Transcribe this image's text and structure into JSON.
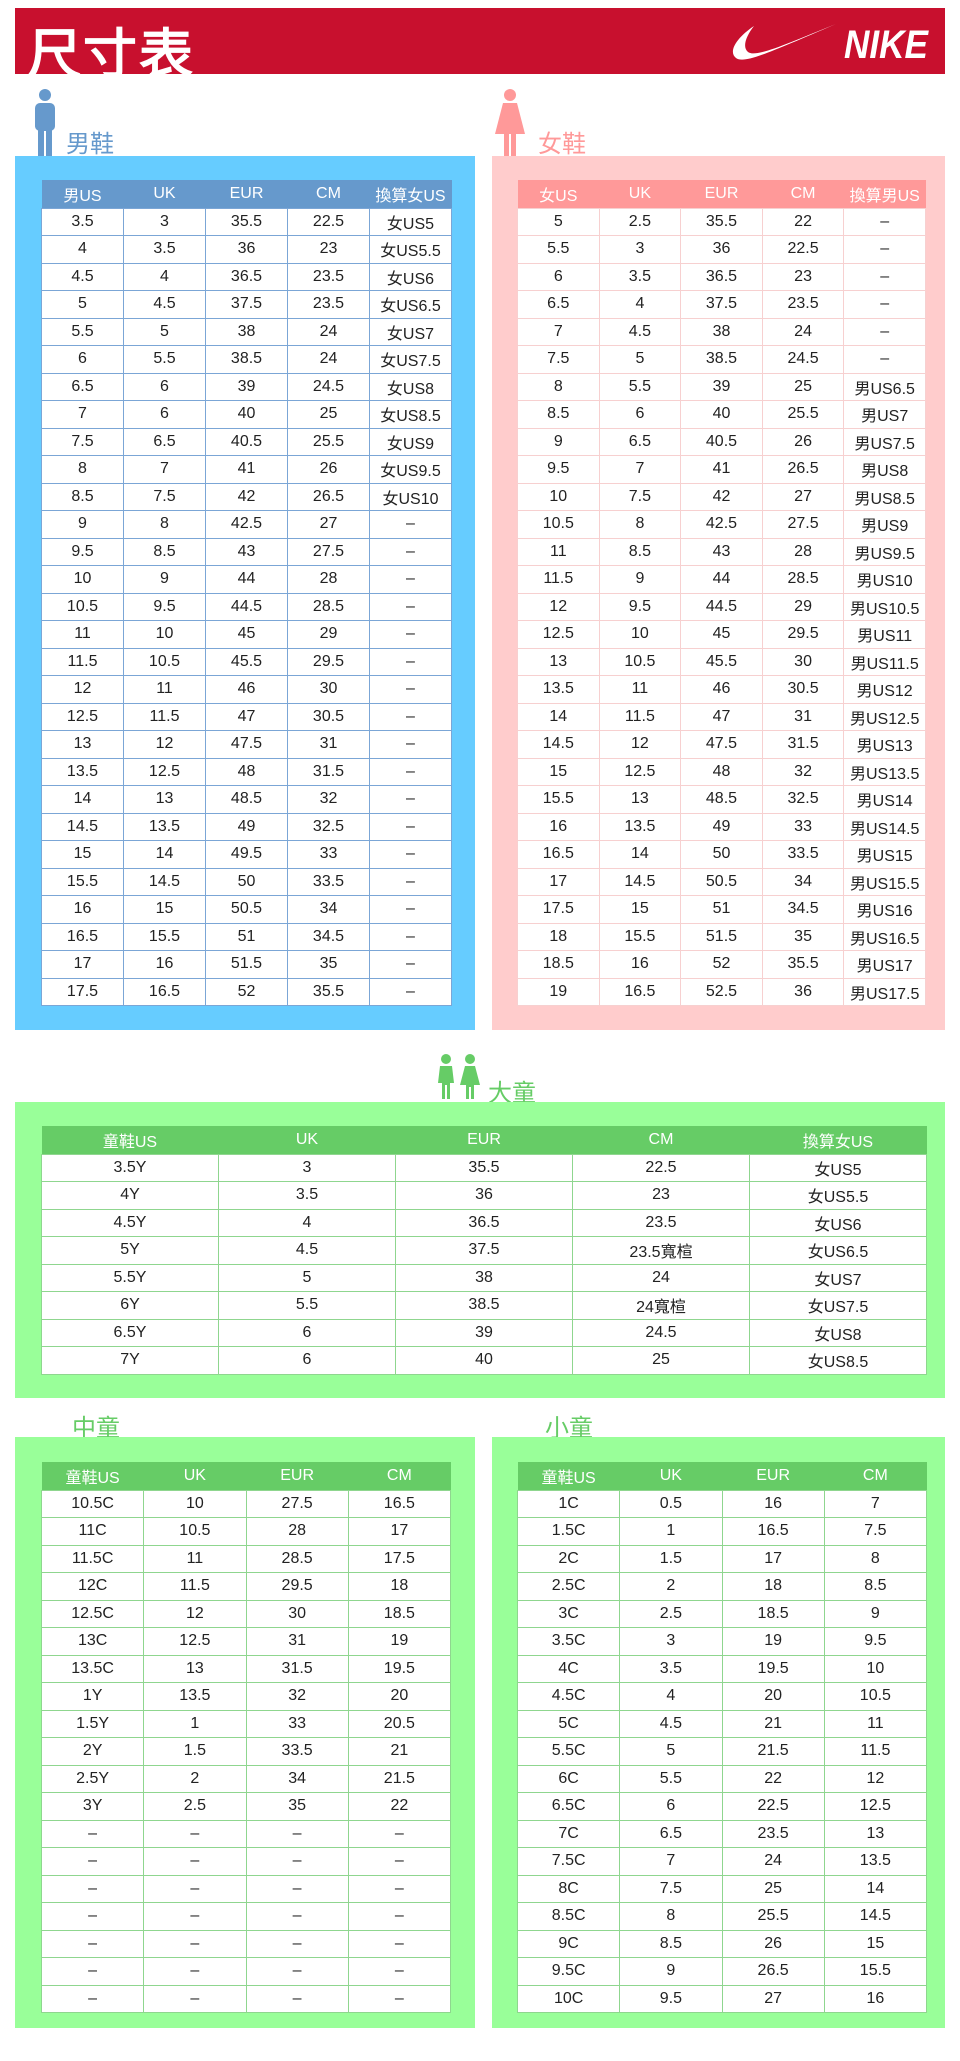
{
  "header": {
    "title": "尺寸表",
    "logo_text": "NIKE",
    "brand_color": "#c8102e"
  },
  "men": {
    "label": "男鞋",
    "color": "#6699cc",
    "panel_color": "#66ccff",
    "columns": [
      "男US",
      "UK",
      "EUR",
      "CM",
      "換算女US"
    ],
    "rows": [
      [
        "3.5",
        "3",
        "35.5",
        "22.5",
        "女US5"
      ],
      [
        "4",
        "3.5",
        "36",
        "23",
        "女US5.5"
      ],
      [
        "4.5",
        "4",
        "36.5",
        "23.5",
        "女US6"
      ],
      [
        "5",
        "4.5",
        "37.5",
        "23.5",
        "女US6.5"
      ],
      [
        "5.5",
        "5",
        "38",
        "24",
        "女US7"
      ],
      [
        "6",
        "5.5",
        "38.5",
        "24",
        "女US7.5"
      ],
      [
        "6.5",
        "6",
        "39",
        "24.5",
        "女US8"
      ],
      [
        "7",
        "6",
        "40",
        "25",
        "女US8.5"
      ],
      [
        "7.5",
        "6.5",
        "40.5",
        "25.5",
        "女US9"
      ],
      [
        "8",
        "7",
        "41",
        "26",
        "女US9.5"
      ],
      [
        "8.5",
        "7.5",
        "42",
        "26.5",
        "女US10"
      ],
      [
        "9",
        "8",
        "42.5",
        "27",
        "–"
      ],
      [
        "9.5",
        "8.5",
        "43",
        "27.5",
        "–"
      ],
      [
        "10",
        "9",
        "44",
        "28",
        "–"
      ],
      [
        "10.5",
        "9.5",
        "44.5",
        "28.5",
        "–"
      ],
      [
        "11",
        "10",
        "45",
        "29",
        "–"
      ],
      [
        "11.5",
        "10.5",
        "45.5",
        "29.5",
        "–"
      ],
      [
        "12",
        "11",
        "46",
        "30",
        "–"
      ],
      [
        "12.5",
        "11.5",
        "47",
        "30.5",
        "–"
      ],
      [
        "13",
        "12",
        "47.5",
        "31",
        "–"
      ],
      [
        "13.5",
        "12.5",
        "48",
        "31.5",
        "–"
      ],
      [
        "14",
        "13",
        "48.5",
        "32",
        "–"
      ],
      [
        "14.5",
        "13.5",
        "49",
        "32.5",
        "–"
      ],
      [
        "15",
        "14",
        "49.5",
        "33",
        "–"
      ],
      [
        "15.5",
        "14.5",
        "50",
        "33.5",
        "–"
      ],
      [
        "16",
        "15",
        "50.5",
        "34",
        "–"
      ],
      [
        "16.5",
        "15.5",
        "51",
        "34.5",
        "–"
      ],
      [
        "17",
        "16",
        "51.5",
        "35",
        "–"
      ],
      [
        "17.5",
        "16.5",
        "52",
        "35.5",
        "–"
      ]
    ]
  },
  "women": {
    "label": "女鞋",
    "color": "#ff9999",
    "panel_color": "#ffcccc",
    "columns": [
      "女US",
      "UK",
      "EUR",
      "CM",
      "換算男US"
    ],
    "rows": [
      [
        "5",
        "2.5",
        "35.5",
        "22",
        "–"
      ],
      [
        "5.5",
        "3",
        "36",
        "22.5",
        "–"
      ],
      [
        "6",
        "3.5",
        "36.5",
        "23",
        "–"
      ],
      [
        "6.5",
        "4",
        "37.5",
        "23.5",
        "–"
      ],
      [
        "7",
        "4.5",
        "38",
        "24",
        "–"
      ],
      [
        "7.5",
        "5",
        "38.5",
        "24.5",
        "–"
      ],
      [
        "8",
        "5.5",
        "39",
        "25",
        "男US6.5"
      ],
      [
        "8.5",
        "6",
        "40",
        "25.5",
        "男US7"
      ],
      [
        "9",
        "6.5",
        "40.5",
        "26",
        "男US7.5"
      ],
      [
        "9.5",
        "7",
        "41",
        "26.5",
        "男US8"
      ],
      [
        "10",
        "7.5",
        "42",
        "27",
        "男US8.5"
      ],
      [
        "10.5",
        "8",
        "42.5",
        "27.5",
        "男US9"
      ],
      [
        "11",
        "8.5",
        "43",
        "28",
        "男US9.5"
      ],
      [
        "11.5",
        "9",
        "44",
        "28.5",
        "男US10"
      ],
      [
        "12",
        "9.5",
        "44.5",
        "29",
        "男US10.5"
      ],
      [
        "12.5",
        "10",
        "45",
        "29.5",
        "男US11"
      ],
      [
        "13",
        "10.5",
        "45.5",
        "30",
        "男US11.5"
      ],
      [
        "13.5",
        "11",
        "46",
        "30.5",
        "男US12"
      ],
      [
        "14",
        "11.5",
        "47",
        "31",
        "男US12.5"
      ],
      [
        "14.5",
        "12",
        "47.5",
        "31.5",
        "男US13"
      ],
      [
        "15",
        "12.5",
        "48",
        "32",
        "男US13.5"
      ],
      [
        "15.5",
        "13",
        "48.5",
        "32.5",
        "男US14"
      ],
      [
        "16",
        "13.5",
        "49",
        "33",
        "男US14.5"
      ],
      [
        "16.5",
        "14",
        "50",
        "33.5",
        "男US15"
      ],
      [
        "17",
        "14.5",
        "50.5",
        "34",
        "男US15.5"
      ],
      [
        "17.5",
        "15",
        "51",
        "34.5",
        "男US16"
      ],
      [
        "18",
        "15.5",
        "51.5",
        "35",
        "男US16.5"
      ],
      [
        "18.5",
        "16",
        "52",
        "35.5",
        "男US17"
      ],
      [
        "19",
        "16.5",
        "52.5",
        "36",
        "男US17.5"
      ]
    ]
  },
  "big_kids": {
    "label": "大童",
    "color": "#66cc66",
    "panel_color": "#99ff99",
    "columns": [
      "童鞋US",
      "UK",
      "EUR",
      "CM",
      "換算女US"
    ],
    "rows": [
      [
        "3.5Y",
        "3",
        "35.5",
        "22.5",
        "女US5"
      ],
      [
        "4Y",
        "3.5",
        "36",
        "23",
        "女US5.5"
      ],
      [
        "4.5Y",
        "4",
        "36.5",
        "23.5",
        "女US6"
      ],
      [
        "5Y",
        "4.5",
        "37.5",
        "23.5寬楦",
        "女US6.5"
      ],
      [
        "5.5Y",
        "5",
        "38",
        "24",
        "女US7"
      ],
      [
        "6Y",
        "5.5",
        "38.5",
        "24寬楦",
        "女US7.5"
      ],
      [
        "6.5Y",
        "6",
        "39",
        "24.5",
        "女US8"
      ],
      [
        "7Y",
        "6",
        "40",
        "25",
        "女US8.5"
      ]
    ]
  },
  "mid_kids": {
    "label": "中童",
    "columns": [
      "童鞋US",
      "UK",
      "EUR",
      "CM"
    ],
    "rows": [
      [
        "10.5C",
        "10",
        "27.5",
        "16.5"
      ],
      [
        "11C",
        "10.5",
        "28",
        "17"
      ],
      [
        "11.5C",
        "11",
        "28.5",
        "17.5"
      ],
      [
        "12C",
        "11.5",
        "29.5",
        "18"
      ],
      [
        "12.5C",
        "12",
        "30",
        "18.5"
      ],
      [
        "13C",
        "12.5",
        "31",
        "19"
      ],
      [
        "13.5C",
        "13",
        "31.5",
        "19.5"
      ],
      [
        "1Y",
        "13.5",
        "32",
        "20"
      ],
      [
        "1.5Y",
        "1",
        "33",
        "20.5"
      ],
      [
        "2Y",
        "1.5",
        "33.5",
        "21"
      ],
      [
        "2.5Y",
        "2",
        "34",
        "21.5"
      ],
      [
        "3Y",
        "2.5",
        "35",
        "22"
      ],
      [
        "–",
        "–",
        "–",
        "–"
      ],
      [
        "–",
        "–",
        "–",
        "–"
      ],
      [
        "–",
        "–",
        "–",
        "–"
      ],
      [
        "–",
        "–",
        "–",
        "–"
      ],
      [
        "–",
        "–",
        "–",
        "–"
      ],
      [
        "–",
        "–",
        "–",
        "–"
      ],
      [
        "–",
        "–",
        "–",
        "–"
      ]
    ]
  },
  "small_kids": {
    "label": "小童",
    "columns": [
      "童鞋US",
      "UK",
      "EUR",
      "CM"
    ],
    "rows": [
      [
        "1C",
        "0.5",
        "16",
        "7"
      ],
      [
        "1.5C",
        "1",
        "16.5",
        "7.5"
      ],
      [
        "2C",
        "1.5",
        "17",
        "8"
      ],
      [
        "2.5C",
        "2",
        "18",
        "8.5"
      ],
      [
        "3C",
        "2.5",
        "18.5",
        "9"
      ],
      [
        "3.5C",
        "3",
        "19",
        "9.5"
      ],
      [
        "4C",
        "3.5",
        "19.5",
        "10"
      ],
      [
        "4.5C",
        "4",
        "20",
        "10.5"
      ],
      [
        "5C",
        "4.5",
        "21",
        "11"
      ],
      [
        "5.5C",
        "5",
        "21.5",
        "11.5"
      ],
      [
        "6C",
        "5.5",
        "22",
        "12"
      ],
      [
        "6.5C",
        "6",
        "22.5",
        "12.5"
      ],
      [
        "7C",
        "6.5",
        "23.5",
        "13"
      ],
      [
        "7.5C",
        "7",
        "24",
        "13.5"
      ],
      [
        "8C",
        "7.5",
        "25",
        "14"
      ],
      [
        "8.5C",
        "8",
        "25.5",
        "14.5"
      ],
      [
        "9C",
        "8.5",
        "26",
        "15"
      ],
      [
        "9.5C",
        "9",
        "26.5",
        "15.5"
      ],
      [
        "10C",
        "9.5",
        "27",
        "16"
      ]
    ]
  }
}
